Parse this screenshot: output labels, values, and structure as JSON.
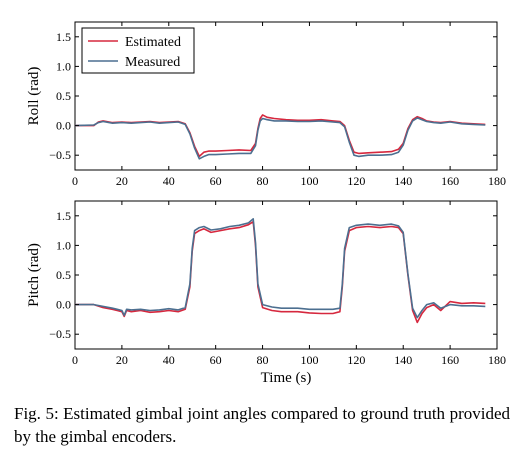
{
  "caption": "Fig. 5: Estimated gimbal joint angles compared to ground truth provided by the gimbal encoders.",
  "colors": {
    "estimated": "#d6283e",
    "measured": "#4c6f90"
  },
  "chart_data": [
    {
      "type": "line",
      "ylabel": "Roll (rad)",
      "xlabel": "",
      "xlim": [
        0,
        180
      ],
      "ylim": [
        -0.75,
        1.75
      ],
      "xticks": [
        0,
        20,
        40,
        60,
        80,
        100,
        120,
        140,
        160,
        180
      ],
      "yticks": [
        -0.5,
        0.0,
        0.5,
        1.0,
        1.5
      ],
      "xtick_labels": [
        "0",
        "20",
        "40",
        "60",
        "80",
        "100",
        "120",
        "140",
        "160",
        "180"
      ],
      "ytick_labels": [
        "−0.5",
        "0.0",
        "0.5",
        "1.0",
        "1.5"
      ],
      "grid": false,
      "legend": "top-left",
      "series": [
        {
          "name": "Estimated",
          "color": "#d6283e",
          "x": [
            0,
            8,
            10,
            12,
            16,
            20,
            24,
            28,
            32,
            36,
            40,
            44,
            47,
            49,
            51,
            53,
            55,
            57,
            60,
            65,
            70,
            75,
            77,
            78,
            79,
            80,
            82,
            85,
            90,
            95,
            100,
            105,
            110,
            113,
            115,
            117,
            119,
            121,
            125,
            130,
            135,
            138,
            140,
            142,
            144,
            146,
            148,
            150,
            153,
            156,
            160,
            165,
            170,
            175
          ],
          "y": [
            0.0,
            0.0,
            0.06,
            0.08,
            0.05,
            0.06,
            0.05,
            0.06,
            0.07,
            0.05,
            0.06,
            0.07,
            0.03,
            -0.12,
            -0.35,
            -0.52,
            -0.45,
            -0.43,
            -0.43,
            -0.42,
            -0.41,
            -0.42,
            -0.3,
            -0.05,
            0.12,
            0.18,
            0.14,
            0.12,
            0.1,
            0.09,
            0.09,
            0.1,
            0.08,
            0.07,
            0.0,
            -0.25,
            -0.45,
            -0.47,
            -0.46,
            -0.45,
            -0.44,
            -0.4,
            -0.3,
            -0.05,
            0.1,
            0.15,
            0.12,
            0.08,
            0.06,
            0.05,
            0.07,
            0.04,
            0.03,
            0.02
          ]
        },
        {
          "name": "Measured",
          "color": "#4c6f90",
          "x": [
            0,
            8,
            10,
            12,
            16,
            20,
            24,
            28,
            32,
            36,
            40,
            44,
            47,
            49,
            51,
            53,
            55,
            57,
            60,
            65,
            70,
            75,
            77,
            78,
            79,
            80,
            82,
            85,
            90,
            95,
            100,
            105,
            110,
            113,
            115,
            117,
            119,
            121,
            125,
            130,
            135,
            138,
            140,
            142,
            144,
            146,
            148,
            150,
            153,
            156,
            160,
            165,
            170,
            175
          ],
          "y": [
            0.0,
            0.01,
            0.05,
            0.07,
            0.04,
            0.05,
            0.04,
            0.05,
            0.06,
            0.04,
            0.05,
            0.06,
            0.02,
            -0.14,
            -0.38,
            -0.56,
            -0.52,
            -0.49,
            -0.49,
            -0.48,
            -0.47,
            -0.47,
            -0.34,
            -0.08,
            0.08,
            0.12,
            0.1,
            0.08,
            0.08,
            0.07,
            0.07,
            0.08,
            0.06,
            0.05,
            -0.02,
            -0.28,
            -0.5,
            -0.52,
            -0.5,
            -0.5,
            -0.49,
            -0.45,
            -0.33,
            -0.08,
            0.08,
            0.13,
            0.1,
            0.07,
            0.05,
            0.04,
            0.06,
            0.03,
            0.02,
            0.01
          ]
        }
      ]
    },
    {
      "type": "line",
      "ylabel": "Pitch (rad)",
      "xlabel": "Time (s)",
      "xlim": [
        0,
        180
      ],
      "ylim": [
        -0.75,
        1.75
      ],
      "xticks": [
        0,
        20,
        40,
        60,
        80,
        100,
        120,
        140,
        160,
        180
      ],
      "yticks": [
        -0.5,
        0.0,
        0.5,
        1.0,
        1.5
      ],
      "xtick_labels": [
        "0",
        "20",
        "40",
        "60",
        "80",
        "100",
        "120",
        "140",
        "160",
        "180"
      ],
      "ytick_labels": [
        "−0.5",
        "0.0",
        "0.5",
        "1.0",
        "1.5"
      ],
      "grid": false,
      "series": [
        {
          "name": "Estimated",
          "color": "#d6283e",
          "x": [
            0,
            8,
            12,
            16,
            18,
            20,
            21,
            22,
            24,
            28,
            32,
            36,
            40,
            44,
            47,
            49,
            50,
            51,
            53,
            55,
            58,
            62,
            66,
            70,
            74,
            76,
            77,
            78,
            80,
            84,
            88,
            95,
            100,
            105,
            110,
            113,
            114,
            115,
            117,
            120,
            125,
            130,
            135,
            138,
            140,
            142,
            144,
            146,
            148,
            150,
            153,
            156,
            160,
            165,
            170,
            175
          ],
          "y": [
            0.0,
            0.0,
            -0.05,
            -0.08,
            -0.1,
            -0.12,
            -0.2,
            -0.1,
            -0.12,
            -0.1,
            -0.13,
            -0.12,
            -0.1,
            -0.12,
            -0.08,
            0.3,
            0.9,
            1.2,
            1.25,
            1.28,
            1.22,
            1.25,
            1.28,
            1.3,
            1.35,
            1.4,
            1.0,
            0.3,
            -0.05,
            -0.1,
            -0.12,
            -0.12,
            -0.14,
            -0.15,
            -0.15,
            -0.12,
            0.3,
            0.9,
            1.25,
            1.3,
            1.32,
            1.3,
            1.32,
            1.3,
            1.2,
            0.5,
            -0.1,
            -0.3,
            -0.15,
            -0.05,
            0.0,
            -0.1,
            0.05,
            0.02,
            0.03,
            0.02
          ]
        },
        {
          "name": "Measured",
          "color": "#4c6f90",
          "x": [
            0,
            8,
            12,
            16,
            18,
            20,
            21,
            22,
            24,
            28,
            32,
            36,
            40,
            44,
            47,
            49,
            50,
            51,
            53,
            55,
            58,
            62,
            66,
            70,
            74,
            76,
            77,
            78,
            80,
            84,
            88,
            95,
            100,
            105,
            110,
            113,
            114,
            115,
            117,
            120,
            125,
            130,
            135,
            138,
            140,
            142,
            144,
            146,
            148,
            150,
            153,
            156,
            160,
            165,
            170,
            175
          ],
          "y": [
            0.0,
            0.0,
            -0.03,
            -0.06,
            -0.08,
            -0.1,
            -0.18,
            -0.08,
            -0.09,
            -0.08,
            -0.1,
            -0.09,
            -0.07,
            -0.09,
            -0.05,
            0.35,
            0.95,
            1.25,
            1.3,
            1.32,
            1.26,
            1.28,
            1.32,
            1.34,
            1.38,
            1.45,
            1.05,
            0.35,
            0.0,
            -0.04,
            -0.06,
            -0.06,
            -0.08,
            -0.08,
            -0.08,
            -0.06,
            0.35,
            0.95,
            1.3,
            1.34,
            1.36,
            1.34,
            1.36,
            1.33,
            1.22,
            0.52,
            -0.06,
            -0.22,
            -0.1,
            0.0,
            0.03,
            -0.06,
            0.0,
            -0.02,
            -0.02,
            -0.03
          ]
        }
      ]
    }
  ]
}
